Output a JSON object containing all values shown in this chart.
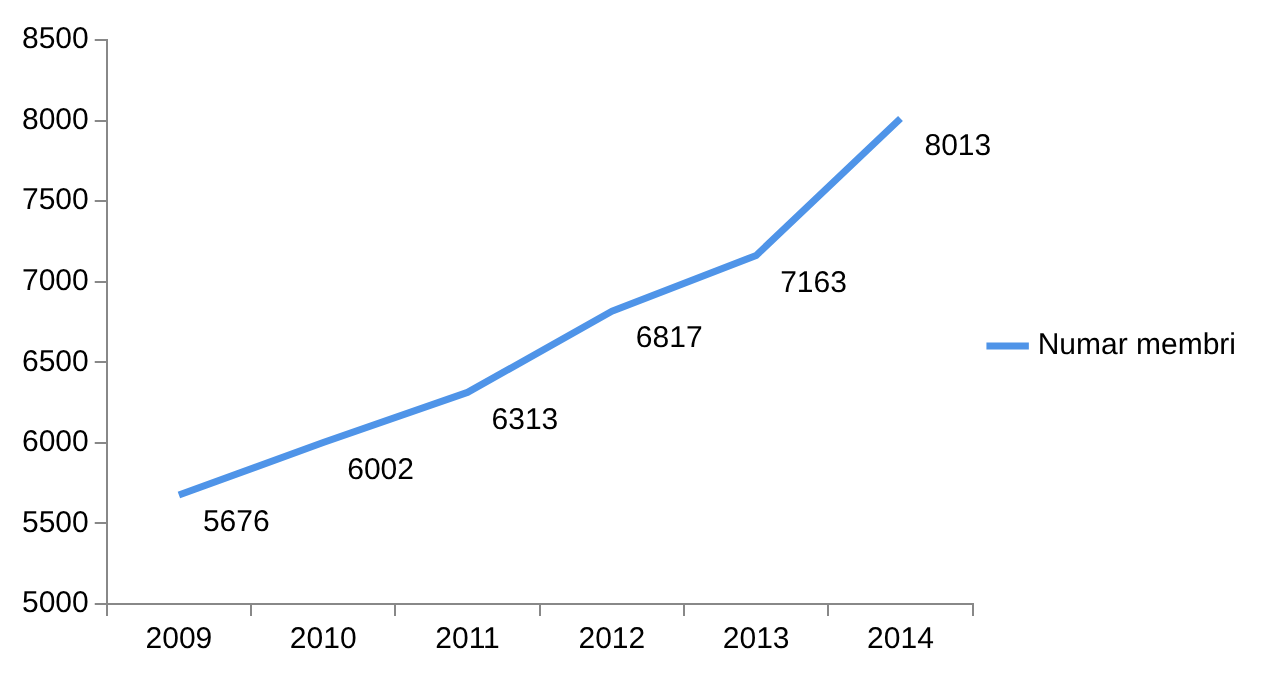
{
  "chart_data": {
    "type": "line",
    "categories": [
      "2009",
      "2010",
      "2011",
      "2012",
      "2013",
      "2014"
    ],
    "series": [
      {
        "name": "Numar membri",
        "color": "#4f94e8",
        "values": [
          5676,
          6002,
          6313,
          6817,
          7163,
          8013
        ]
      }
    ],
    "ylim": [
      5000,
      8500
    ],
    "yticks": [
      5000,
      5500,
      6000,
      6500,
      7000,
      7500,
      8000,
      8500
    ],
    "data_labels": true,
    "legend": "right",
    "grid": false,
    "marker": "none",
    "line_style": "solid"
  }
}
